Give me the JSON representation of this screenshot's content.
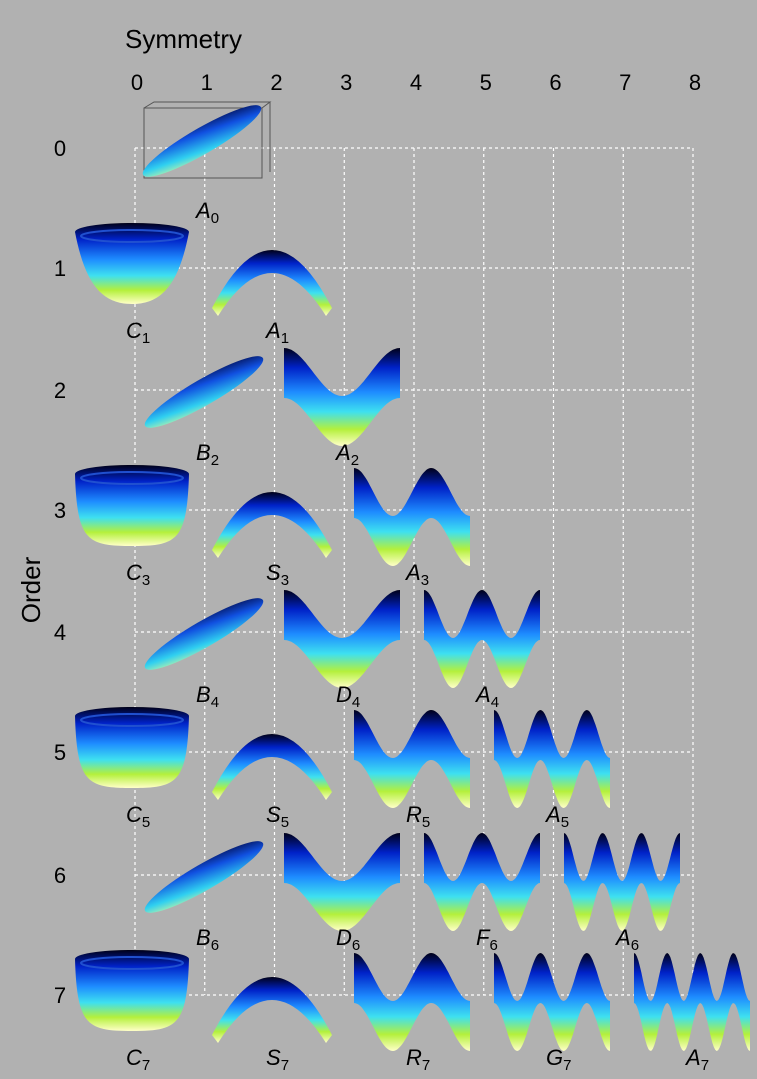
{
  "axes": {
    "x_title": "Symmetry",
    "y_title": "Order",
    "columns": [
      "0",
      "1",
      "2",
      "3",
      "4",
      "5",
      "6",
      "7",
      "8"
    ],
    "rows": [
      "0",
      "1",
      "2",
      "3",
      "4",
      "5",
      "6",
      "7"
    ]
  },
  "rows": [
    [
      {
        "letter": "A",
        "sub": "0"
      }
    ],
    [
      {
        "letter": "C",
        "sub": "1"
      },
      {
        "letter": "A",
        "sub": "1"
      }
    ],
    [
      {
        "letter": "B",
        "sub": "2"
      },
      {
        "letter": "A",
        "sub": "2"
      }
    ],
    [
      {
        "letter": "C",
        "sub": "3"
      },
      {
        "letter": "S",
        "sub": "3"
      },
      {
        "letter": "A",
        "sub": "3"
      }
    ],
    [
      {
        "letter": "B",
        "sub": "4"
      },
      {
        "letter": "D",
        "sub": "4"
      },
      {
        "letter": "A",
        "sub": "4"
      }
    ],
    [
      {
        "letter": "C",
        "sub": "5"
      },
      {
        "letter": "S",
        "sub": "5"
      },
      {
        "letter": "R",
        "sub": "5"
      },
      {
        "letter": "A",
        "sub": "5"
      }
    ],
    [
      {
        "letter": "B",
        "sub": "6"
      },
      {
        "letter": "D",
        "sub": "6"
      },
      {
        "letter": "F",
        "sub": "6"
      },
      {
        "letter": "A",
        "sub": "6"
      }
    ],
    [
      {
        "letter": "C",
        "sub": "7"
      },
      {
        "letter": "S",
        "sub": "7"
      },
      {
        "letter": "R",
        "sub": "7"
      },
      {
        "letter": "G",
        "sub": "7"
      },
      {
        "letter": "A",
        "sub": "7"
      }
    ]
  ]
}
